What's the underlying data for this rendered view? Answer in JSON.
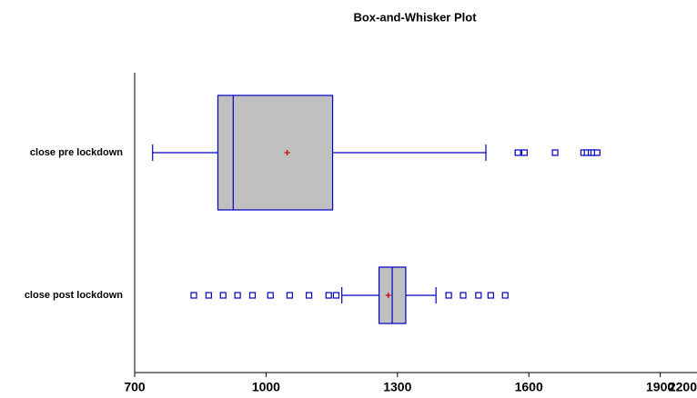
{
  "chart_data": {
    "type": "boxplot",
    "title": "Box-and-Whisker Plot",
    "categories": [
      "close pre lockdown",
      "close post lockdown"
    ],
    "boxes": [
      {
        "min": 741,
        "q1": 890,
        "median": 925,
        "mean": 1048,
        "q3": 1152,
        "max": 1502,
        "outliers": [
          1575,
          1590,
          1660,
          1725,
          1733,
          1742,
          1748,
          1756
        ]
      },
      {
        "min": 1173,
        "q1": 1258,
        "median": 1288,
        "mean": 1279,
        "q3": 1319,
        "max": 1388,
        "outliers": [
          835,
          869,
          902,
          935,
          969,
          1010,
          1054,
          1098,
          1143,
          1160,
          1417,
          1450,
          1485,
          1513,
          1546
        ]
      }
    ],
    "box_color": "#c0c0c0",
    "line_color": "#0000c0",
    "mean_color": "#c00000",
    "xlim": [
      700,
      2200
    ],
    "xticks": [
      700,
      1000,
      1300,
      1600,
      1900,
      2200
    ]
  }
}
